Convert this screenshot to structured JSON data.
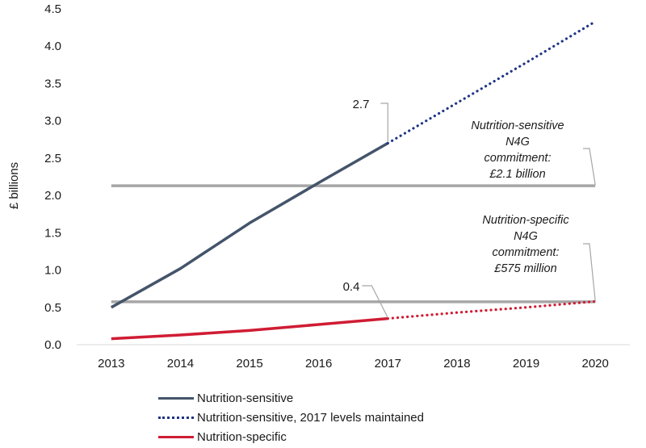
{
  "chart_data": {
    "type": "line",
    "ylabel": "£ billions",
    "xlabel": "",
    "ylim": [
      0,
      4.5
    ],
    "yticks": [
      "0.0",
      "0.5",
      "1.0",
      "1.5",
      "2.0",
      "2.5",
      "3.0",
      "3.5",
      "4.0",
      "4.5"
    ],
    "categories": [
      "2013",
      "2014",
      "2015",
      "2016",
      "2017",
      "2018",
      "2019",
      "2020"
    ],
    "series": [
      {
        "name": "Nutrition-sensitive",
        "color": "#44546a",
        "style": "solid",
        "x": [
          "2013",
          "2014",
          "2015",
          "2016",
          "2017"
        ],
        "values": [
          0.5,
          1.02,
          1.63,
          2.17,
          2.7
        ]
      },
      {
        "name": "Nutrition-sensitive, 2017 levels maintained",
        "color": "#1f3486",
        "style": "dotted",
        "x": [
          "2017",
          "2018",
          "2019",
          "2020"
        ],
        "values": [
          2.7,
          3.24,
          3.78,
          4.33
        ]
      },
      {
        "name": "Nutrition-specific",
        "color": "#d01c34",
        "style": "solid",
        "x": [
          "2013",
          "2014",
          "2015",
          "2016",
          "2017"
        ],
        "values": [
          0.08,
          0.13,
          0.19,
          0.27,
          0.35
        ]
      },
      {
        "name": "",
        "color": "#d01c34",
        "style": "dotted",
        "x": [
          "2017",
          "2018",
          "2019",
          "2020"
        ],
        "values": [
          0.35,
          0.43,
          0.5,
          0.58
        ]
      }
    ],
    "reference_lines": [
      {
        "value": 2.13,
        "color": "#a6a6a6",
        "from": "2013",
        "to": "2020"
      },
      {
        "value": 0.575,
        "color": "#a6a6a6",
        "from": "2013",
        "to": "2020"
      }
    ],
    "annotations": [
      {
        "lines": [
          "Nutrition-sensitive",
          "N4G",
          "commitment:",
          "£2.1 billion"
        ]
      },
      {
        "lines": [
          "Nutrition-specific",
          "N4G",
          "commitment:",
          "£575 million"
        ]
      }
    ],
    "data_labels": [
      {
        "text": "2.7",
        "series": 0,
        "x": "2017",
        "value": 2.7
      },
      {
        "text": "0.4",
        "series": 2,
        "x": "2017",
        "value": 0.35
      }
    ],
    "legend": {
      "position": "bottom-left",
      "items": [
        {
          "label": "Nutrition-sensitive",
          "style": "solid-blue"
        },
        {
          "label": "Nutrition-sensitive, 2017 levels maintained",
          "style": "dot-blue"
        },
        {
          "label": "Nutrition-specific",
          "style": "solid-red"
        }
      ]
    },
    "grid": false
  }
}
